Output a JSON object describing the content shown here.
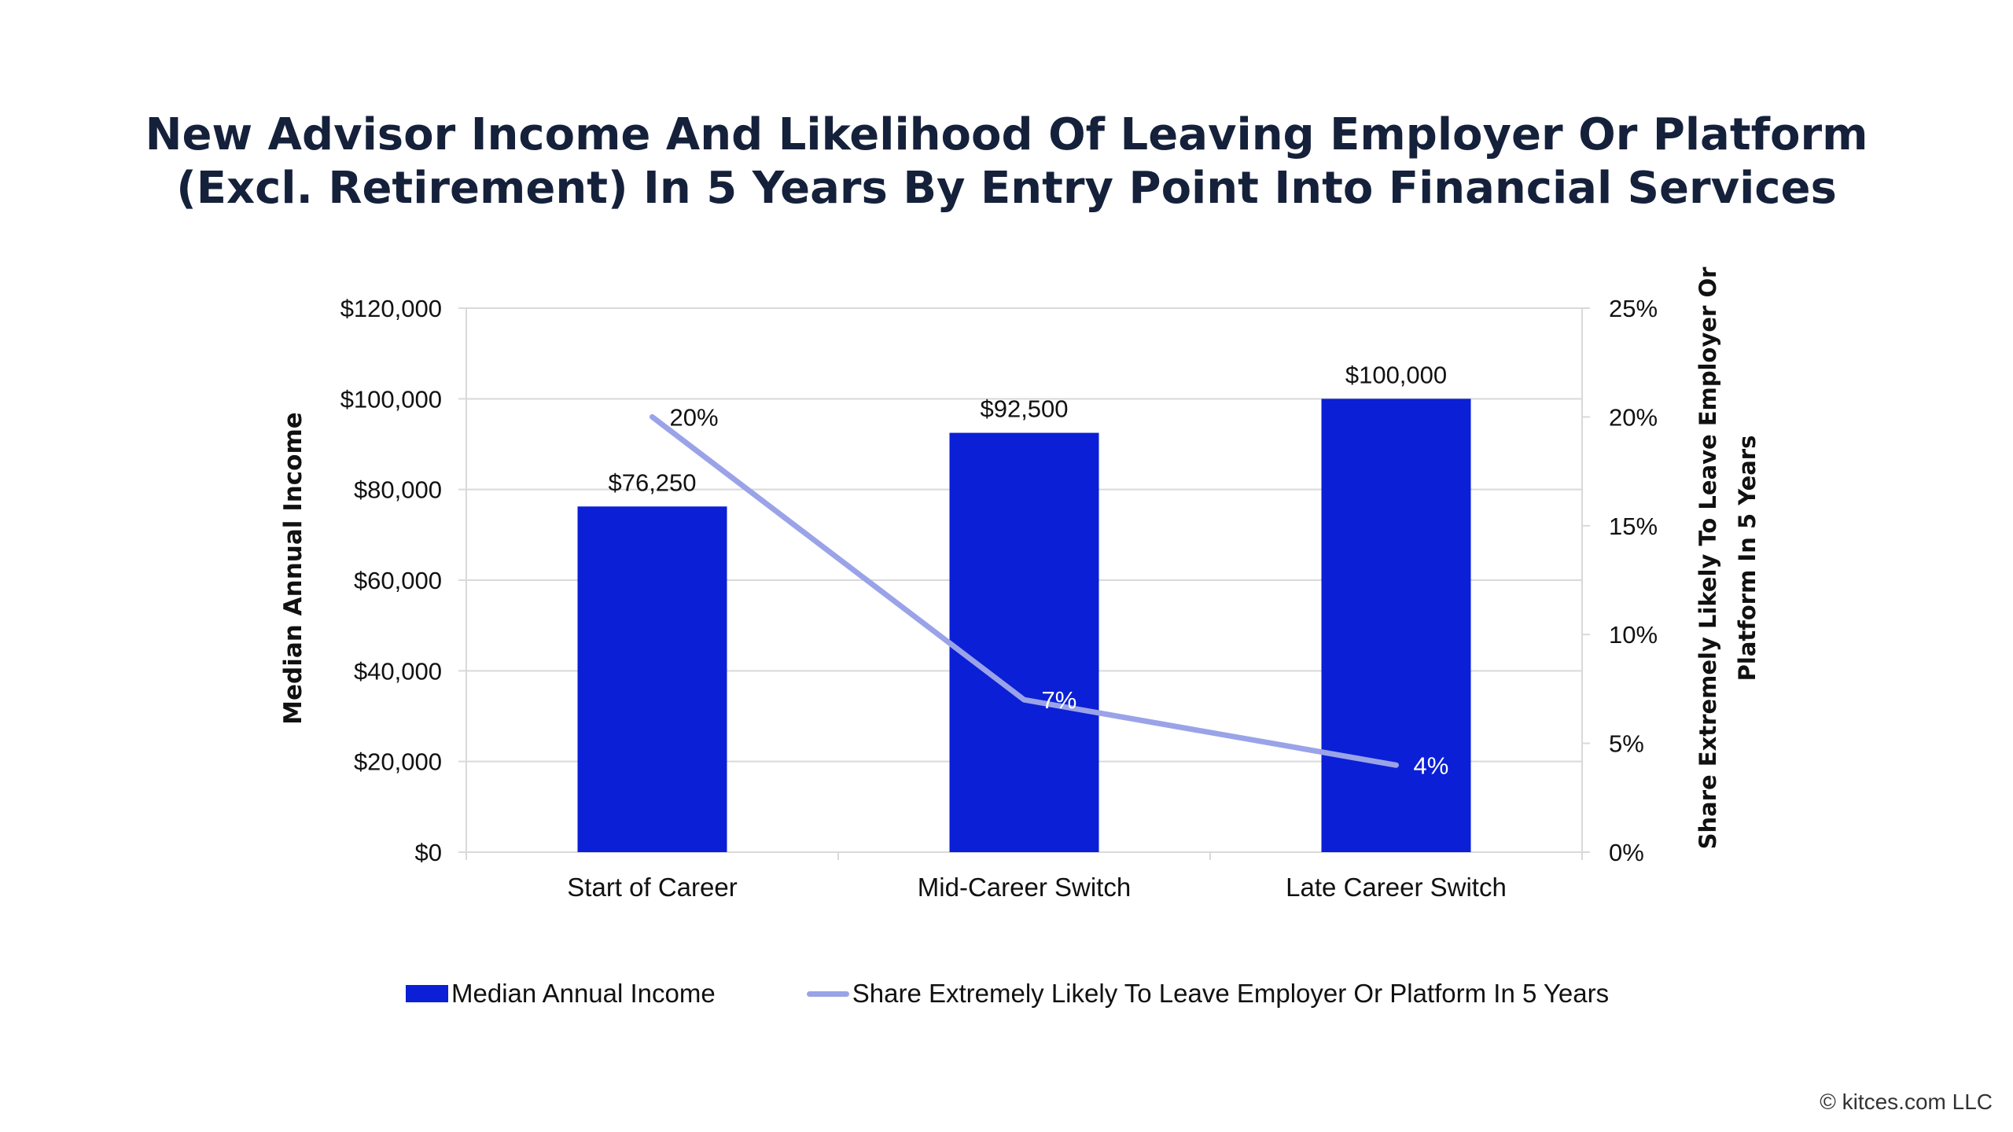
{
  "chart_data": {
    "type": "bar",
    "title_lines": [
      "New Advisor Income And Likelihood Of Leaving Employer Or Platform",
      "(Excl. Retirement) In 5 Years By Entry Point Into Financial Services"
    ],
    "categories": [
      "Start of Career",
      "Mid-Career Switch",
      "Late Career Switch"
    ],
    "series": [
      {
        "name": "Median Annual Income",
        "type": "bar",
        "axis": "left",
        "values": [
          76250,
          92500,
          100000
        ],
        "labels": [
          "$76,250",
          "$92,500",
          "$100,000"
        ],
        "color": "#0b1fd6"
      },
      {
        "name": "Share Extremely Likely To Leave Employer Or Platform In 5 Years",
        "type": "line",
        "axis": "right",
        "values": [
          20,
          7,
          4
        ],
        "labels": [
          "20%",
          "7%",
          "4%"
        ],
        "color": "#9aa3e8"
      }
    ],
    "ylabel": "Median Annual Income",
    "ylim": [
      0,
      120000
    ],
    "yticks": [
      {
        "value": 0,
        "label": "$0"
      },
      {
        "value": 20000,
        "label": "$20,000"
      },
      {
        "value": 40000,
        "label": "$40,000"
      },
      {
        "value": 60000,
        "label": "$60,000"
      },
      {
        "value": 80000,
        "label": "$80,000"
      },
      {
        "value": 100000,
        "label": "$100,000"
      },
      {
        "value": 120000,
        "label": "$120,000"
      }
    ],
    "y2label_lines": [
      "Share Extremely Likely To Leave Employer Or",
      "Platform In 5 Years"
    ],
    "y2lim": [
      0,
      25
    ],
    "y2ticks": [
      {
        "value": 0,
        "label": "0%"
      },
      {
        "value": 5,
        "label": "5%"
      },
      {
        "value": 10,
        "label": "10%"
      },
      {
        "value": 15,
        "label": "15%"
      },
      {
        "value": 20,
        "label": "20%"
      },
      {
        "value": 25,
        "label": "25%"
      }
    ],
    "grid": true,
    "legend_position": "bottom"
  },
  "footer": {
    "copyright": "© kitces.com LLC"
  }
}
